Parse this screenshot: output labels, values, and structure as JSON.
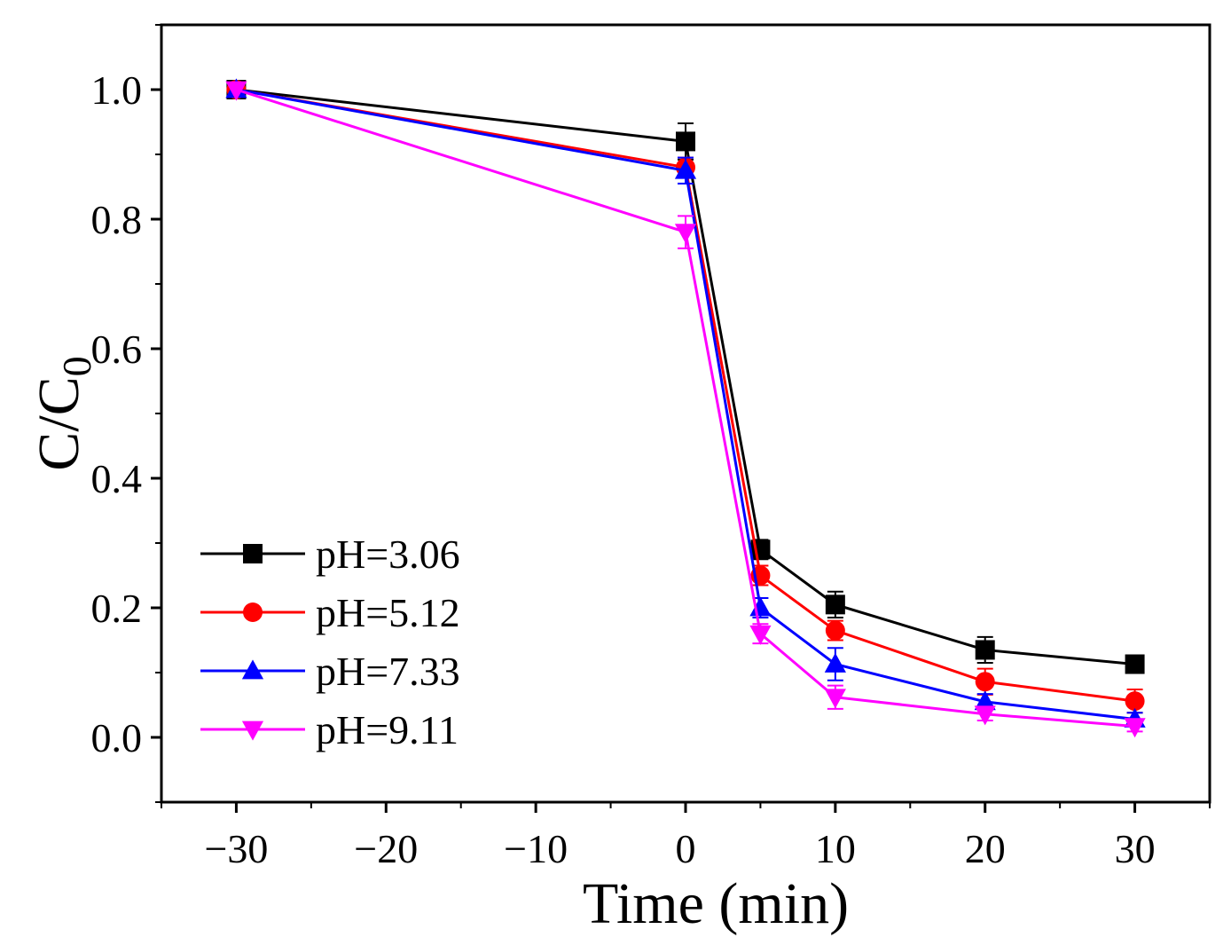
{
  "chart_data": {
    "type": "line",
    "title": "",
    "xlabel": "Time (min)",
    "ylabel": "C/C",
    "ylabel_subscript": "0",
    "xlim": [
      -35,
      35
    ],
    "ylim": [
      -0.1,
      1.1
    ],
    "xticks": [
      -30,
      -20,
      -10,
      0,
      10,
      20,
      30
    ],
    "xtick_labels": [
      "−30",
      "−20",
      "−10",
      "0",
      "10",
      "20",
      "30"
    ],
    "yticks": [
      0.0,
      0.2,
      0.4,
      0.6,
      0.8,
      1.0
    ],
    "ytick_labels": [
      "0.0",
      "0.2",
      "0.4",
      "0.6",
      "0.8",
      "1.0"
    ],
    "x": [
      -30,
      0,
      5,
      10,
      20,
      30
    ],
    "legend_position": "lower-left",
    "series": [
      {
        "name": "pH=3.06",
        "color": "#000000",
        "marker": "square",
        "values": [
          1.0,
          0.92,
          0.29,
          0.205,
          0.135,
          0.113
        ],
        "errors": [
          0.0,
          0.028,
          0.015,
          0.02,
          0.02,
          0.012
        ]
      },
      {
        "name": "pH=5.12",
        "color": "#ff0000",
        "marker": "circle",
        "values": [
          1.0,
          0.88,
          0.25,
          0.165,
          0.086,
          0.056
        ],
        "errors": [
          0.0,
          0.015,
          0.015,
          0.015,
          0.02,
          0.018
        ]
      },
      {
        "name": "pH=7.33",
        "color": "#0000ff",
        "marker": "triangle-up",
        "values": [
          1.0,
          0.875,
          0.2,
          0.113,
          0.055,
          0.028
        ],
        "errors": [
          0.0,
          0.02,
          0.015,
          0.025,
          0.012,
          0.01
        ]
      },
      {
        "name": "pH=9.11",
        "color": "#ff00ff",
        "marker": "triangle-down",
        "values": [
          1.0,
          0.78,
          0.16,
          0.062,
          0.036,
          0.017
        ],
        "errors": [
          0.0,
          0.025,
          0.015,
          0.018,
          0.01,
          0.008
        ]
      }
    ]
  }
}
